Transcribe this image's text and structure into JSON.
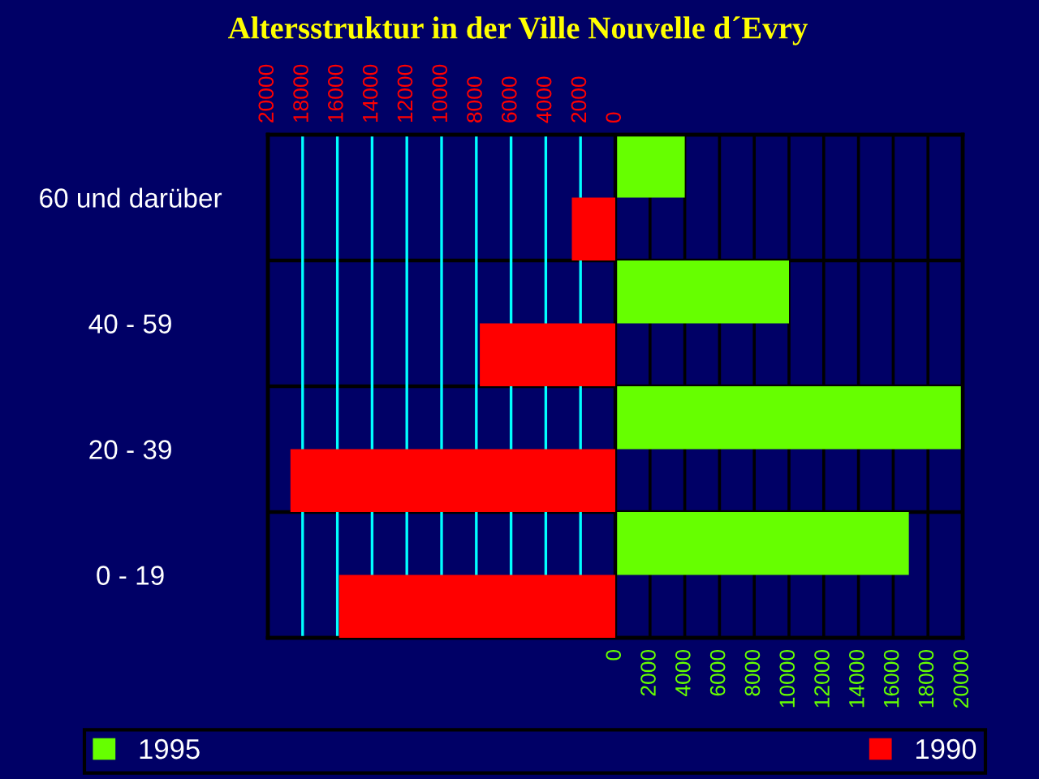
{
  "chart_data": {
    "type": "bar",
    "orientation": "horizontal",
    "title": "Altersstruktur in der Ville Nouvelle d´Evry",
    "categories": [
      "60 und darüber",
      "40 - 59",
      "20 - 39",
      "0 - 19"
    ],
    "series": [
      {
        "name": "1995",
        "color": "#66ff00",
        "values": [
          4000,
          10000,
          20000,
          16900
        ]
      },
      {
        "name": "1990",
        "color": "#ff0000",
        "axis": "x2",
        "values": [
          2500,
          7800,
          18700,
          15900
        ]
      }
    ],
    "xlim": [
      -20000,
      20000
    ],
    "xticks": [
      0,
      2000,
      4000,
      6000,
      8000,
      10000,
      12000,
      14000,
      16000,
      18000,
      20000
    ],
    "x2lim": [
      20000,
      -20000
    ],
    "x2ticks": [
      20000,
      18000,
      16000,
      14000,
      12000,
      10000,
      8000,
      6000,
      4000,
      2000,
      0
    ],
    "grid": true,
    "legend": "bottom"
  }
}
